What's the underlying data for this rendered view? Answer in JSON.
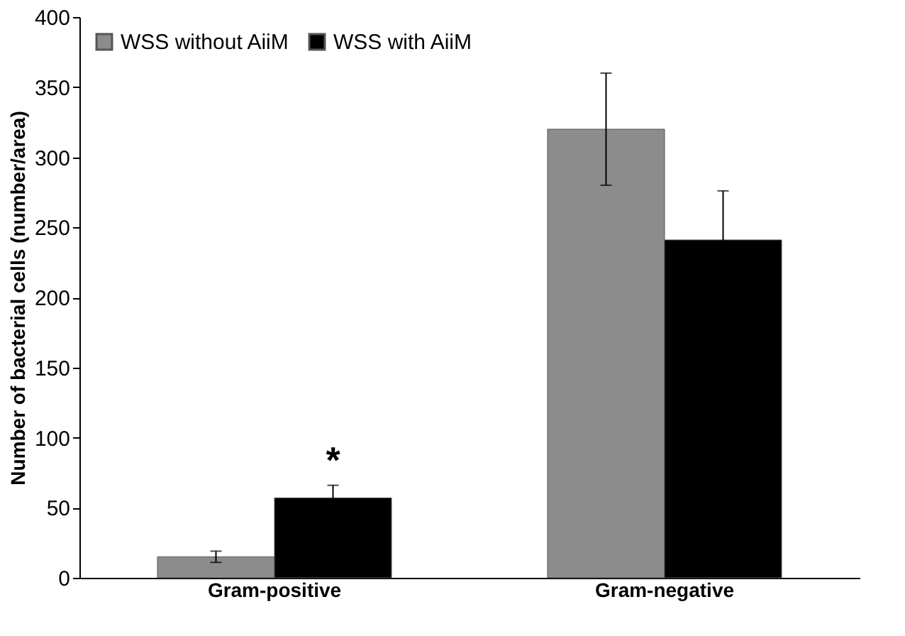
{
  "chart_data": {
    "type": "bar",
    "ylabel": "Number of bacterial cells (number/area)",
    "categories": [
      "Gram-positive",
      "Gram-negative"
    ],
    "series": [
      {
        "name": "WSS without AiiM",
        "color": "#8c8c8c",
        "values": [
          15,
          320
        ],
        "errors": [
          4,
          40
        ]
      },
      {
        "name": "WSS with AiiM",
        "color": "#000000",
        "values": [
          57,
          241
        ],
        "errors": [
          9,
          35
        ]
      }
    ],
    "annotations": [
      "*"
    ],
    "ylim": [
      0,
      400
    ],
    "yticks": [
      0,
      50,
      100,
      150,
      200,
      250,
      300,
      350,
      400
    ],
    "grid": false,
    "legend": "top left"
  }
}
